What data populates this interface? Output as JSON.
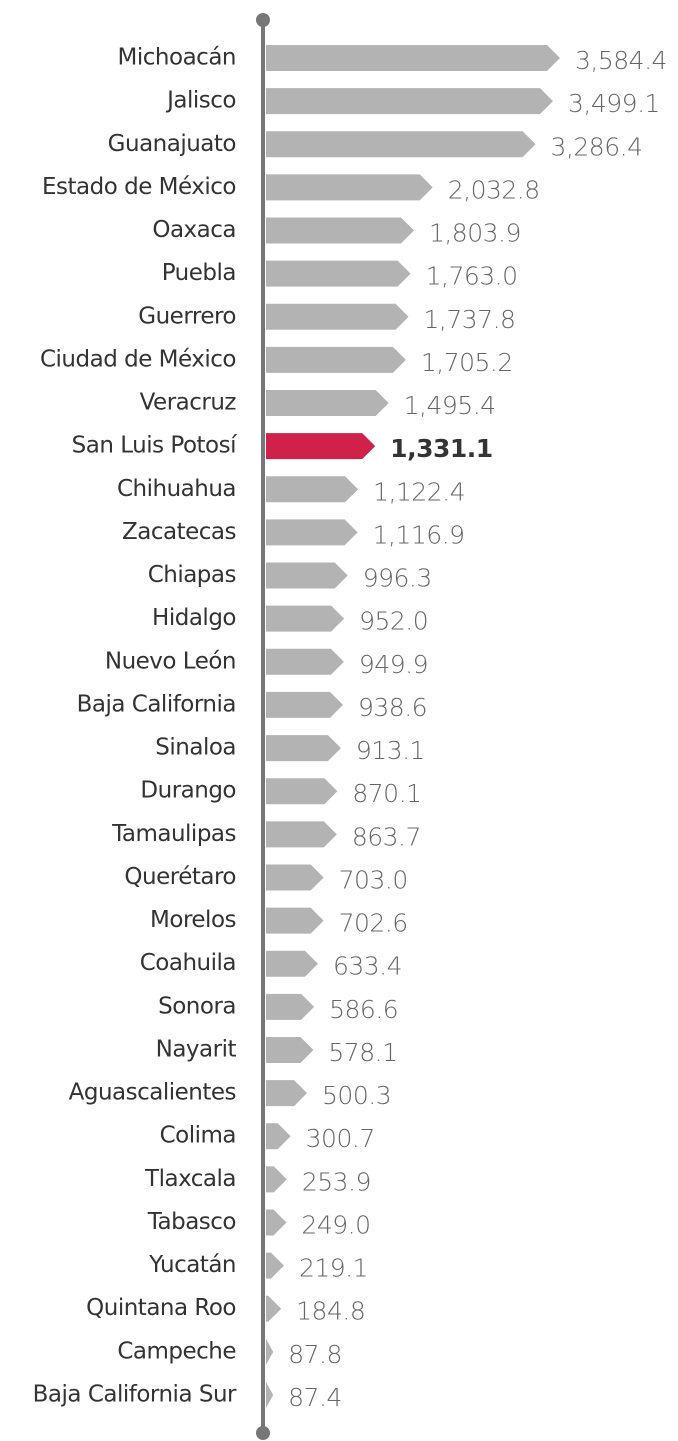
{
  "chart_data": {
    "type": "bar",
    "orientation": "horizontal",
    "categories": [
      "Michoacán",
      "Jalisco",
      "Guanajuato",
      "Estado de México",
      "Oaxaca",
      "Puebla",
      "Guerrero",
      "Ciudad de México",
      "Veracruz",
      "San Luis Potosí",
      "Chihuahua",
      "Zacatecas",
      "Chiapas",
      "Hidalgo",
      "Nuevo León",
      "Baja California",
      "Sinaloa",
      "Durango",
      "Tamaulipas",
      "Querétaro",
      "Morelos",
      "Coahuila",
      "Sonora",
      "Nayarit",
      "Aguascalientes",
      "Colima",
      "Tlaxcala",
      "Tabasco",
      "Yucatán",
      "Quintana Roo",
      "Campeche",
      "Baja California Sur"
    ],
    "values": [
      3584.4,
      3499.1,
      3286.4,
      2032.8,
      1803.9,
      1763.0,
      1737.8,
      1705.2,
      1495.4,
      1331.1,
      1122.4,
      1116.9,
      996.3,
      952.0,
      949.9,
      938.6,
      913.1,
      870.1,
      863.7,
      703.0,
      702.6,
      633.4,
      586.6,
      578.1,
      500.3,
      300.7,
      253.9,
      249.0,
      219.1,
      184.8,
      87.8,
      87.4
    ],
    "value_labels": [
      "3,584.4",
      "3,499.1",
      "3,286.4",
      "2,032.8",
      "1,803.9",
      "1,763.0",
      "1,737.8",
      "1,705.2",
      "1,495.4",
      "1,331.1",
      "1,122.4",
      "1,116.9",
      "996.3",
      "952.0",
      "949.9",
      "938.6",
      "913.1",
      "870.1",
      "863.7",
      "703.0",
      "702.6",
      "633.4",
      "586.6",
      "578.1",
      "500.3",
      "300.7",
      "253.9",
      "249.0",
      "219.1",
      "184.8",
      "87.8",
      "87.4"
    ],
    "color": "#b3b3b3",
    "colors": [
      "#b3b3b3",
      "#b3b3b3",
      "#b3b3b3",
      "#b3b3b3",
      "#b3b3b3",
      "#b3b3b3",
      "#b3b3b3",
      "#b3b3b3",
      "#b3b3b3",
      "#d0214a",
      "#b3b3b3",
      "#b3b3b3",
      "#b3b3b3",
      "#b3b3b3",
      "#b3b3b3",
      "#b3b3b3",
      "#b3b3b3",
      "#b3b3b3",
      "#b3b3b3",
      "#b3b3b3",
      "#b3b3b3",
      "#b3b3b3",
      "#b3b3b3",
      "#b3b3b3",
      "#b3b3b3",
      "#b3b3b3",
      "#b3b3b3",
      "#b3b3b3",
      "#b3b3b3",
      "#b3b3b3",
      "#b3b3b3",
      "#b3b3b3"
    ]
  }
}
